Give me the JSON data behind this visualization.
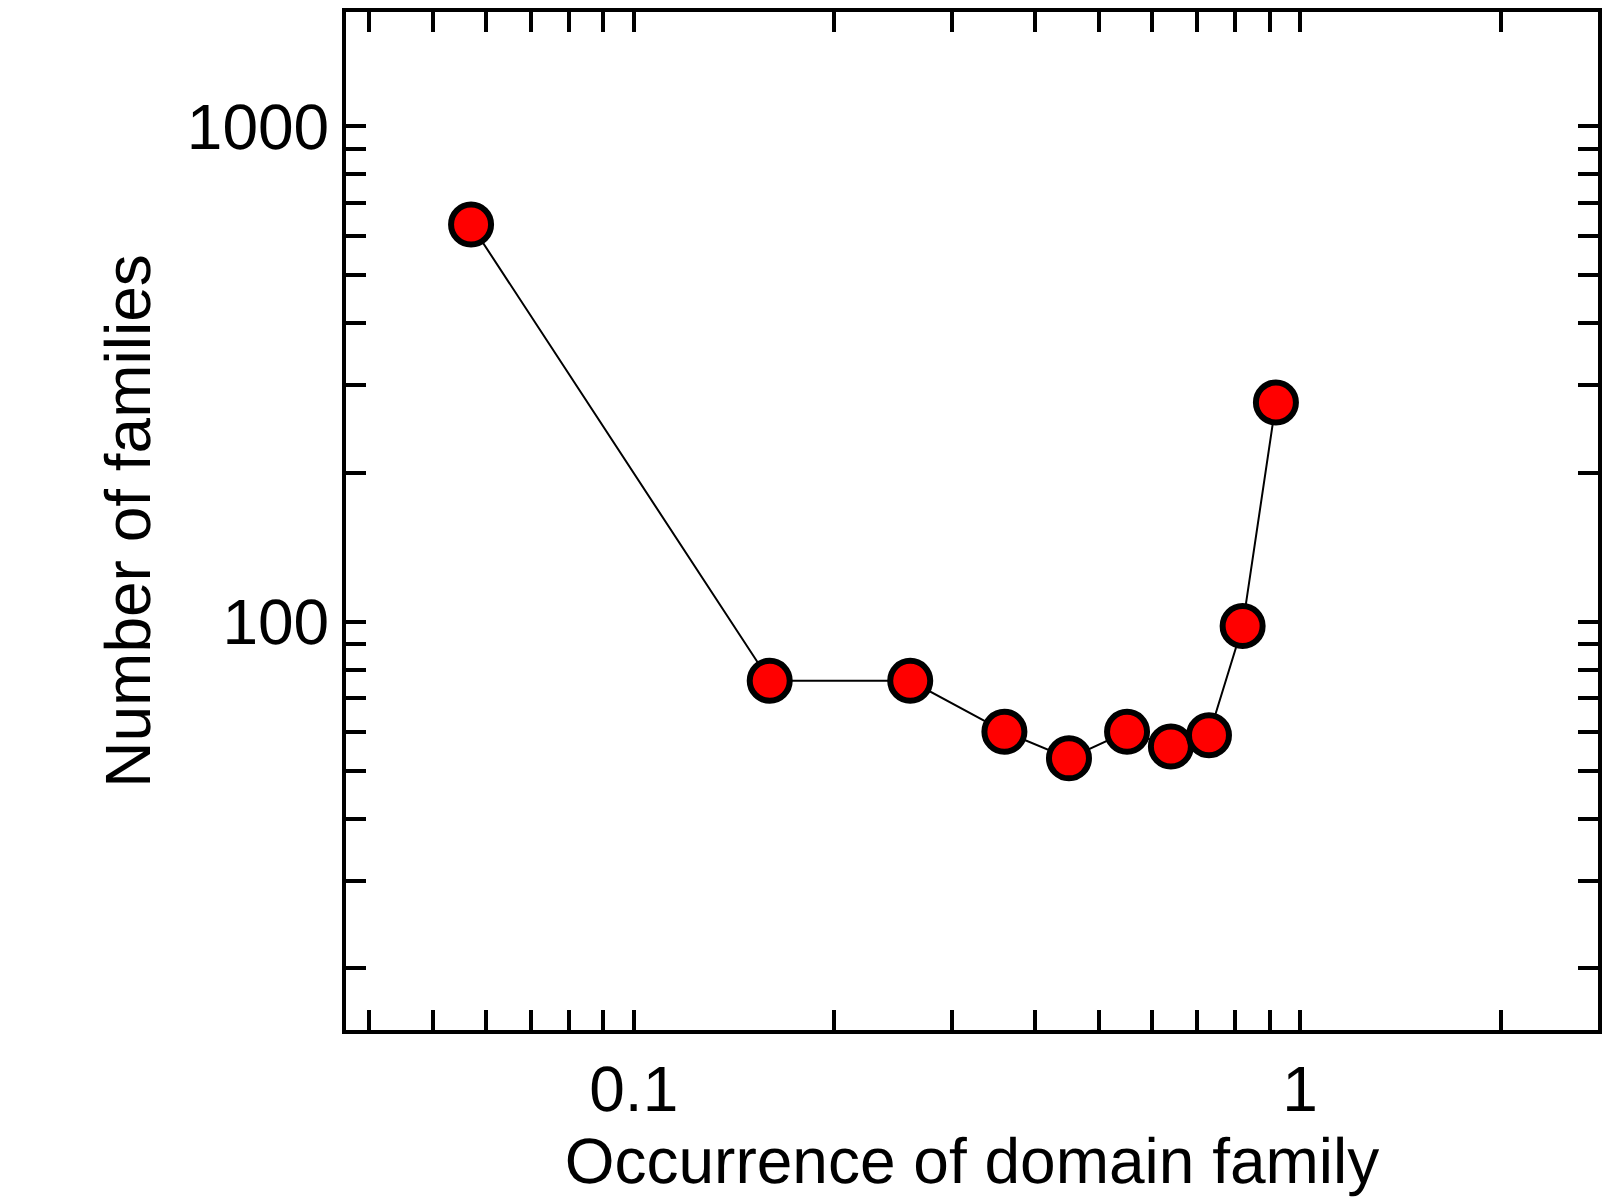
{
  "chart_data": {
    "type": "line",
    "xlabel": "Occurrence of domain family",
    "ylabel": "Number of families",
    "log": "xy",
    "marker": "circle",
    "line_style": "solid",
    "legend": false,
    "x": [
      0.057,
      0.16,
      0.26,
      0.36,
      0.45,
      0.55,
      0.64,
      0.73,
      0.82,
      0.92
    ],
    "series": [
      {
        "color": "#ff0000",
        "values": [
          633,
          76,
          76,
          60,
          53,
          60,
          56,
          59,
          98,
          277
        ]
      }
    ],
    "xlim": [
      0.037,
      2.8
    ],
    "ylim": [
      15,
      1700
    ],
    "xticks": [
      {
        "value": 0.04,
        "label": null
      },
      {
        "value": 0.05,
        "label": null
      },
      {
        "value": 0.06,
        "label": null
      },
      {
        "value": 0.07,
        "label": null
      },
      {
        "value": 0.08,
        "label": null
      },
      {
        "value": 0.09,
        "label": null
      },
      {
        "value": 0.1,
        "label": "0.1"
      },
      {
        "value": 0.2,
        "label": null
      },
      {
        "value": 0.3,
        "label": null
      },
      {
        "value": 0.4,
        "label": null
      },
      {
        "value": 0.5,
        "label": null
      },
      {
        "value": 0.6,
        "label": null
      },
      {
        "value": 0.7,
        "label": null
      },
      {
        "value": 0.8,
        "label": null
      },
      {
        "value": 0.9,
        "label": null
      },
      1,
      {
        "value": 2,
        "label": null
      }
    ],
    "yticks": [
      {
        "value": 20,
        "label": null
      },
      {
        "value": 30,
        "label": null
      },
      {
        "value": 40,
        "label": null
      },
      {
        "value": 50,
        "label": null
      },
      {
        "value": 60,
        "label": null
      },
      {
        "value": 70,
        "label": null
      },
      {
        "value": 80,
        "label": null
      },
      {
        "value": 90,
        "label": null
      },
      100,
      {
        "value": 200,
        "label": null
      },
      {
        "value": 300,
        "label": null
      },
      {
        "value": 400,
        "label": null
      },
      {
        "value": 500,
        "label": null
      },
      {
        "value": 600,
        "label": null
      },
      {
        "value": 700,
        "label": null
      },
      {
        "value": 800,
        "label": null
      },
      {
        "value": 900,
        "label": null
      },
      1000
    ]
  }
}
